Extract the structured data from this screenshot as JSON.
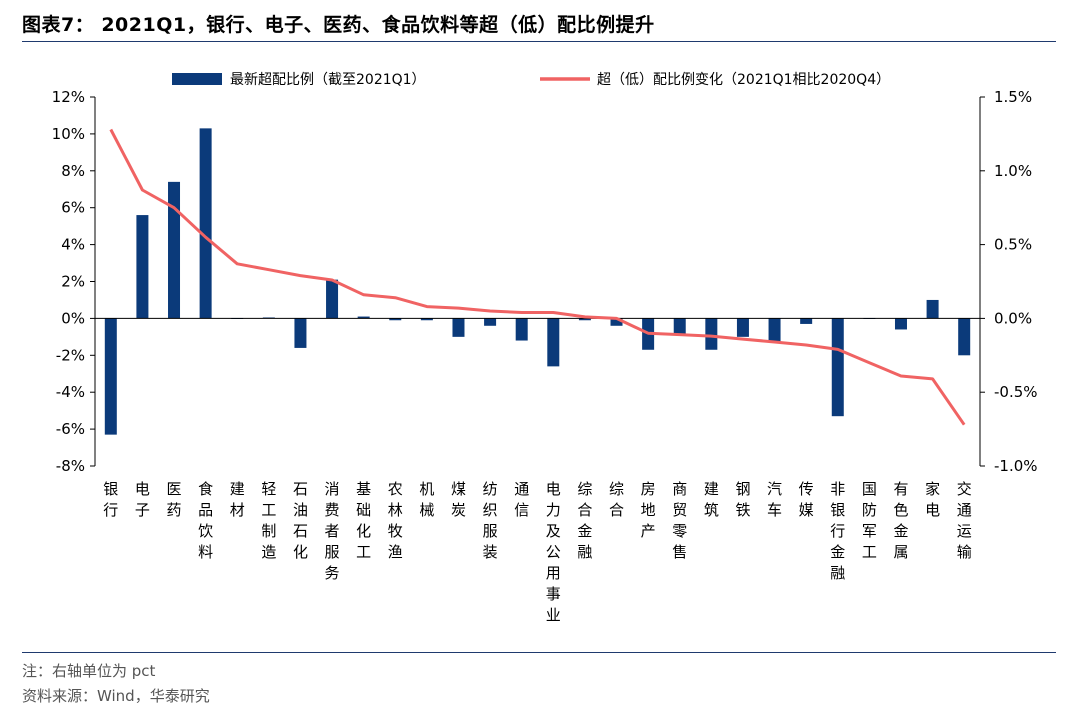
{
  "header": {
    "title": "图表7：  2021Q1，银行、电子、医药、食品饮料等超（低）配比例提升"
  },
  "footer": {
    "note": "注：右轴单位为 pct",
    "source": "资料来源：Wind，华泰研究"
  },
  "chart_data": {
    "type": "bar",
    "categories": [
      "银行",
      "电子",
      "医药",
      "食品饮料",
      "建材",
      "轻工制造",
      "石油石化",
      "消费者服务",
      "基础化工",
      "农林牧渔",
      "机械",
      "煤炭",
      "纺织服装",
      "通信",
      "电力及公用事业",
      "综合金融",
      "综合",
      "房地产",
      "商贸零售",
      "建筑",
      "钢铁",
      "汽车",
      "传媒",
      "非银行金融",
      "国防军工",
      "有色金属",
      "家电",
      "交通运输"
    ],
    "series": [
      {
        "name": "最新超配比例（截至2021Q1）",
        "type": "bar",
        "axis": "left",
        "color": "#0b3a7a",
        "values": [
          -6.3,
          5.6,
          7.4,
          10.3,
          0.0,
          0.05,
          -1.6,
          2.1,
          0.1,
          -0.1,
          -0.1,
          -1.0,
          -0.4,
          -1.2,
          -2.6,
          -0.1,
          -0.4,
          -1.7,
          -0.9,
          -1.7,
          -1.0,
          -1.3,
          -0.3,
          -5.3,
          0.0,
          -0.6,
          1.0,
          -2.0
        ]
      },
      {
        "name": "超（低）配比例变化（2021Q1相比2020Q4）",
        "type": "line",
        "axis": "right",
        "color": "#f06363",
        "values": [
          1.28,
          0.87,
          0.75,
          0.55,
          0.37,
          0.33,
          0.29,
          0.26,
          0.16,
          0.14,
          0.08,
          0.07,
          0.05,
          0.04,
          0.04,
          0.01,
          0.0,
          -0.1,
          -0.11,
          -0.12,
          -0.14,
          -0.16,
          -0.18,
          -0.21,
          -0.3,
          -0.39,
          -0.41,
          -0.72
        ]
      }
    ],
    "left_axis": {
      "min": -8,
      "max": 12,
      "step": 2,
      "unit": "%"
    },
    "right_axis": {
      "min": -1.0,
      "max": 1.5,
      "step": 0.5,
      "unit": "%"
    },
    "legend_position": "top",
    "grid": false
  }
}
